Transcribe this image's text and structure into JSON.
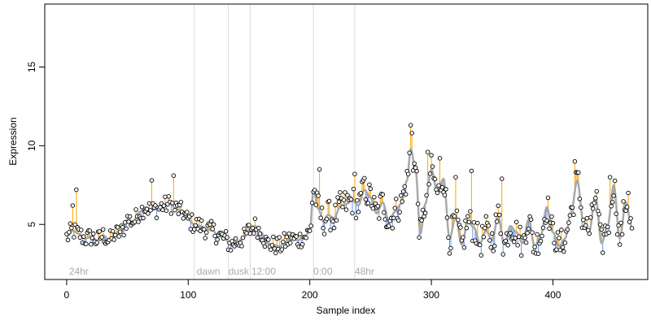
{
  "chart_data": {
    "type": "scatter",
    "title": "",
    "xlabel": "Sample index",
    "ylabel": "Expression",
    "xlim": [
      -18,
      478
    ],
    "ylim": [
      1.5,
      19.0
    ],
    "x_ticks": [
      0,
      100,
      200,
      300,
      400
    ],
    "y_ticks": [
      5,
      10,
      15
    ],
    "grid": false,
    "colors": {
      "points_fill": "#ffffff",
      "points_stroke": "#000000",
      "fit_line": "#a8a8a8",
      "residual_positive": "#ffa500",
      "residual_negative": "#6495ed",
      "vline": "#dddddd",
      "annotation": "#aaaaaa"
    },
    "annotations": [
      {
        "label": "24hr",
        "x": 2
      },
      {
        "label": "dawn",
        "x": 107
      },
      {
        "label": "dusk",
        "x": 133
      },
      {
        "label": "12:00",
        "x": 152
      },
      {
        "label": "0:00",
        "x": 203
      },
      {
        "label": "48hr",
        "x": 237
      }
    ],
    "vlines": [
      105,
      133,
      151,
      203,
      237
    ],
    "anchors": [
      [
        0,
        4.2
      ],
      [
        5,
        4.6
      ],
      [
        10,
        4.4
      ],
      [
        15,
        4.1
      ],
      [
        20,
        4.2
      ],
      [
        25,
        4.0
      ],
      [
        30,
        4.3
      ],
      [
        35,
        4.0
      ],
      [
        40,
        4.4
      ],
      [
        45,
        4.5
      ],
      [
        50,
        5.3
      ],
      [
        55,
        5.2
      ],
      [
        60,
        5.8
      ],
      [
        65,
        6.1
      ],
      [
        70,
        5.9
      ],
      [
        75,
        6.0
      ],
      [
        80,
        6.2
      ],
      [
        85,
        6.3
      ],
      [
        90,
        6.0
      ],
      [
        95,
        5.8
      ],
      [
        100,
        5.3
      ],
      [
        105,
        5.0
      ],
      [
        110,
        4.9
      ],
      [
        115,
        4.7
      ],
      [
        120,
        4.6
      ],
      [
        125,
        4.3
      ],
      [
        130,
        4.1
      ],
      [
        135,
        3.7
      ],
      [
        140,
        3.9
      ],
      [
        145,
        4.1
      ],
      [
        150,
        4.6
      ],
      [
        155,
        4.9
      ],
      [
        160,
        4.5
      ],
      [
        165,
        3.8
      ],
      [
        170,
        3.7
      ],
      [
        175,
        3.6
      ],
      [
        180,
        3.9
      ],
      [
        185,
        4.1
      ],
      [
        190,
        4.0
      ],
      [
        195,
        4.2
      ],
      [
        200,
        4.5
      ],
      [
        203,
        7.2
      ],
      [
        207,
        6.0
      ],
      [
        211,
        5.2
      ],
      [
        215,
        5.6
      ],
      [
        220,
        5.4
      ],
      [
        225,
        6.1
      ],
      [
        230,
        6.3
      ],
      [
        235,
        6.5
      ],
      [
        240,
        6.2
      ],
      [
        245,
        7.2
      ],
      [
        250,
        6.7
      ],
      [
        255,
        5.7
      ],
      [
        260,
        6.4
      ],
      [
        265,
        5.2
      ],
      [
        270,
        5.8
      ],
      [
        275,
        6.3
      ],
      [
        280,
        7.8
      ],
      [
        283,
        9.8
      ],
      [
        287,
        8.5
      ],
      [
        291,
        4.4
      ],
      [
        295,
        6.3
      ],
      [
        300,
        8.5
      ],
      [
        305,
        7.0
      ],
      [
        310,
        7.9
      ],
      [
        315,
        4.1
      ],
      [
        320,
        5.5
      ],
      [
        325,
        3.7
      ],
      [
        330,
        5.2
      ],
      [
        335,
        4.8
      ],
      [
        340,
        3.8
      ],
      [
        345,
        4.6
      ],
      [
        350,
        4.0
      ],
      [
        355,
        5.5
      ],
      [
        360,
        3.7
      ],
      [
        365,
        4.9
      ],
      [
        370,
        4.5
      ],
      [
        375,
        3.8
      ],
      [
        380,
        5.3
      ],
      [
        385,
        3.6
      ],
      [
        390,
        4.3
      ],
      [
        395,
        6.1
      ],
      [
        400,
        4.5
      ],
      [
        405,
        3.6
      ],
      [
        410,
        4.1
      ],
      [
        415,
        5.8
      ],
      [
        420,
        7.8
      ],
      [
        425,
        5.2
      ],
      [
        430,
        4.6
      ],
      [
        435,
        6.8
      ],
      [
        440,
        3.8
      ],
      [
        445,
        4.9
      ],
      [
        450,
        7.5
      ],
      [
        455,
        4.1
      ],
      [
        460,
        6.4
      ],
      [
        465,
        4.8
      ]
    ],
    "outliers": [
      [
        5,
        6.2
      ],
      [
        8,
        7.2
      ],
      [
        70,
        7.8
      ],
      [
        88,
        8.1
      ],
      [
        208,
        8.5
      ],
      [
        237,
        8.2
      ],
      [
        244,
        7.8
      ],
      [
        283,
        11.3
      ],
      [
        284,
        10.8
      ],
      [
        297,
        9.6
      ],
      [
        307,
        9.2
      ],
      [
        320,
        8.0
      ],
      [
        333,
        8.4
      ],
      [
        358,
        7.9
      ],
      [
        418,
        9.0
      ],
      [
        421,
        8.3
      ],
      [
        447,
        8.0
      ],
      [
        462,
        7.0
      ]
    ]
  }
}
